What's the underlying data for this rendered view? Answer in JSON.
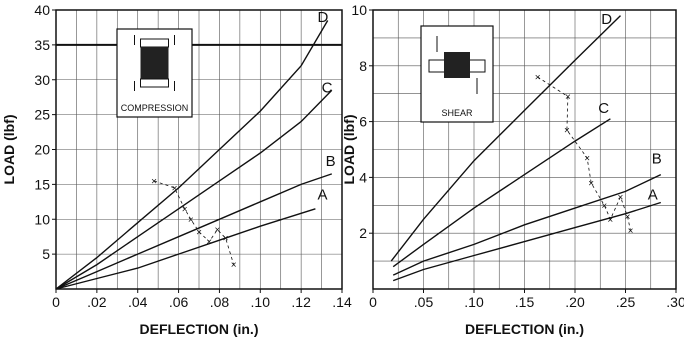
{
  "chart_data": [
    {
      "type": "line",
      "xlabel": "DEFLECTION (in.)",
      "ylabel": "LOAD (lbf)",
      "xlim": [
        0,
        0.14
      ],
      "ylim": [
        0,
        40
      ],
      "xticks": [
        0,
        0.02,
        0.04,
        0.06,
        0.08,
        0.1,
        0.12,
        0.14
      ],
      "xtick_labels": [
        "0",
        ".02",
        ".04",
        ".06",
        ".08",
        ".10",
        ".12",
        ".14"
      ],
      "yticks": [
        5,
        10,
        15,
        20,
        25,
        30,
        35,
        40
      ],
      "ytick_labels": [
        "5",
        "10",
        "15",
        "20",
        "25",
        "30",
        "35",
        "40"
      ],
      "grid": true,
      "reference_line_y": 35,
      "inset": {
        "label": "COMPRESSION",
        "icon": "compression-block-icon"
      },
      "series": [
        {
          "name": "A",
          "x": [
            0,
            0.02,
            0.04,
            0.06,
            0.08,
            0.1,
            0.127
          ],
          "y": [
            0,
            1.5,
            3,
            5,
            7,
            9,
            11.5
          ]
        },
        {
          "name": "B",
          "x": [
            0,
            0.02,
            0.04,
            0.06,
            0.08,
            0.1,
            0.12,
            0.135
          ],
          "y": [
            0,
            2.5,
            5,
            7.5,
            10,
            12.5,
            15,
            16.5
          ]
        },
        {
          "name": "C",
          "x": [
            0,
            0.02,
            0.04,
            0.06,
            0.08,
            0.1,
            0.12,
            0.135
          ],
          "y": [
            0,
            3.5,
            7.5,
            11.5,
            15.5,
            19.5,
            24,
            28.5
          ]
        },
        {
          "name": "D",
          "x": [
            0,
            0.02,
            0.04,
            0.06,
            0.08,
            0.1,
            0.12,
            0.133
          ],
          "y": [
            0,
            4.5,
            9.5,
            14.5,
            20,
            25.5,
            32,
            38.5
          ]
        }
      ],
      "x_markers": [
        {
          "x": 0.048,
          "y": 15.5
        },
        {
          "x": 0.058,
          "y": 14.5
        },
        {
          "x": 0.063,
          "y": 11.5
        },
        {
          "x": 0.066,
          "y": 10
        },
        {
          "x": 0.07,
          "y": 8.2
        },
        {
          "x": 0.075,
          "y": 6.8
        },
        {
          "x": 0.079,
          "y": 8.5
        },
        {
          "x": 0.083,
          "y": 7.3
        },
        {
          "x": 0.087,
          "y": 3.5
        }
      ]
    },
    {
      "type": "line",
      "xlabel": "DEFLECTION (in.)",
      "ylabel": "LOAD (lbf)",
      "xlim": [
        0,
        0.3
      ],
      "ylim": [
        0,
        10
      ],
      "xticks": [
        0,
        0.05,
        0.1,
        0.15,
        0.2,
        0.25,
        0.3
      ],
      "xtick_labels": [
        "0",
        ".05",
        ".10",
        ".15",
        ".20",
        ".25",
        ".30"
      ],
      "yticks": [
        2,
        4,
        6,
        8,
        10
      ],
      "ytick_labels": [
        "2",
        "4",
        "6",
        "8",
        "10"
      ],
      "grid": true,
      "inset": {
        "label": "SHEAR",
        "icon": "shear-block-icon"
      },
      "series": [
        {
          "name": "A",
          "x": [
            0.02,
            0.05,
            0.1,
            0.15,
            0.2,
            0.25,
            0.285
          ],
          "y": [
            0.3,
            0.7,
            1.2,
            1.7,
            2.2,
            2.7,
            3.1
          ]
        },
        {
          "name": "B",
          "x": [
            0.02,
            0.05,
            0.1,
            0.15,
            0.2,
            0.25,
            0.285
          ],
          "y": [
            0.5,
            1.0,
            1.6,
            2.3,
            2.9,
            3.5,
            4.1
          ]
        },
        {
          "name": "C",
          "x": [
            0.02,
            0.05,
            0.1,
            0.15,
            0.2,
            0.235
          ],
          "y": [
            0.8,
            1.6,
            2.9,
            4.1,
            5.3,
            6.1
          ]
        },
        {
          "name": "D",
          "x": [
            0.018,
            0.05,
            0.1,
            0.15,
            0.2,
            0.245
          ],
          "y": [
            1.0,
            2.5,
            4.6,
            6.4,
            8.2,
            9.8
          ]
        }
      ],
      "x_markers": [
        {
          "x": 0.163,
          "y": 7.6
        },
        {
          "x": 0.193,
          "y": 6.9
        },
        {
          "x": 0.192,
          "y": 5.7
        },
        {
          "x": 0.212,
          "y": 4.7
        },
        {
          "x": 0.216,
          "y": 3.8
        },
        {
          "x": 0.229,
          "y": 3.0
        },
        {
          "x": 0.235,
          "y": 2.5
        },
        {
          "x": 0.245,
          "y": 3.3
        },
        {
          "x": 0.252,
          "y": 2.6
        },
        {
          "x": 0.255,
          "y": 2.1
        }
      ]
    }
  ]
}
